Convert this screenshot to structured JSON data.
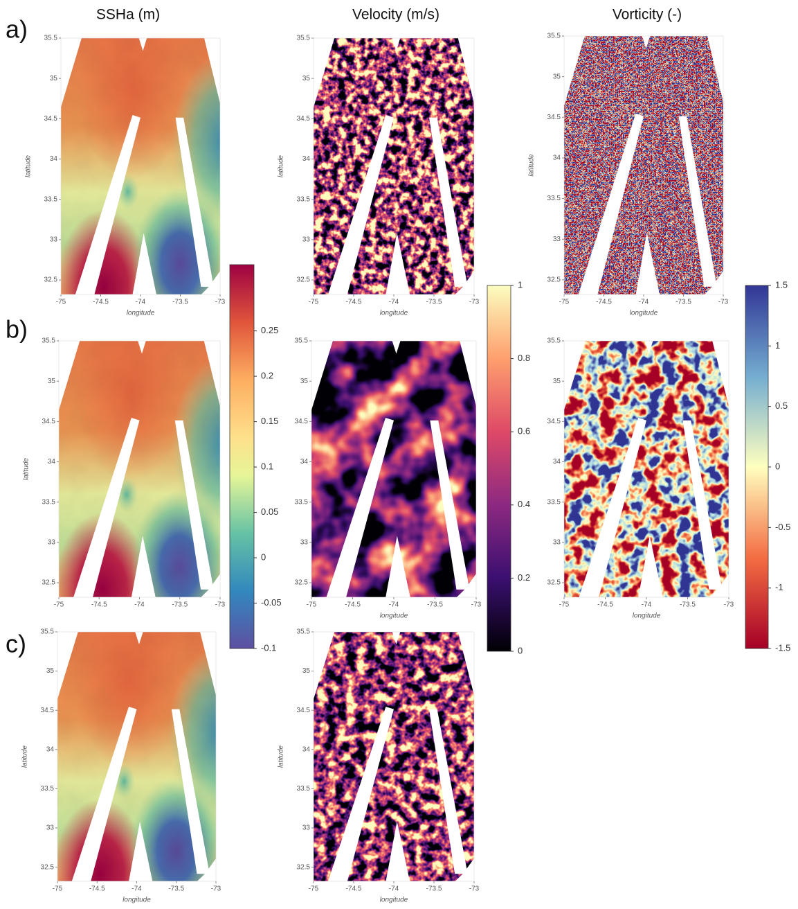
{
  "column_titles": [
    "SSHa (m)",
    "Velocity (m/s)",
    "Vorticity (-)"
  ],
  "rows": [
    {
      "label": "a)",
      "panels": [
        {
          "ylabel": "latitude",
          "xlabel": "longitude",
          "xlim": [
            -75,
            -73
          ],
          "ylim": [
            32.32,
            35.5
          ],
          "xticks": [
            -75,
            -74.5,
            -74,
            -73.5,
            -73
          ],
          "yticks": [
            32.5,
            33,
            33.5,
            34,
            34.5,
            35,
            35.5
          ]
        },
        {
          "ylabel": "latitude",
          "xlabel": "longitude",
          "xlim": [
            -75,
            -73
          ],
          "ylim": [
            32.32,
            35.5
          ],
          "xticks": [
            -75,
            -74.5,
            -74,
            -73.5,
            -73
          ],
          "yticks": [
            32.5,
            33,
            33.5,
            34,
            34.5,
            35,
            35.5
          ]
        },
        {
          "ylabel": "latitude",
          "xlabel": "longitude",
          "xlim": [
            -75,
            -73
          ],
          "ylim": [
            32.32,
            35.5
          ],
          "xticks": [
            -75,
            -74.5,
            -74,
            -73.5,
            -73
          ],
          "yticks": [
            32.5,
            33,
            33.5,
            34,
            34.5,
            35,
            35.5
          ]
        }
      ]
    },
    {
      "label": "b)",
      "panels": [
        {
          "ylabel": "latitude",
          "xlim": [
            -75,
            -73
          ],
          "ylim": [
            32.32,
            35.5
          ],
          "xticks": [
            -75,
            -74.5,
            -74,
            -73.5,
            -73
          ],
          "yticks": [
            32.5,
            33,
            33.5,
            34,
            34.5,
            35,
            35.5
          ]
        },
        {
          "xlabel": "longitude",
          "xlim": [
            -75,
            -73
          ],
          "ylim": [
            32.32,
            35.5
          ],
          "xticks": [
            -75,
            -74.5,
            -74,
            -73.5,
            -73
          ],
          "yticks": [
            32.5,
            33,
            33.5,
            34,
            34.5,
            35,
            35.5
          ]
        },
        {
          "xlabel": "longitude",
          "xlim": [
            -75,
            -73
          ],
          "ylim": [
            32.32,
            35.5
          ],
          "xticks": [
            -75,
            -74.5,
            -74,
            -73.5,
            -73
          ],
          "yticks": [
            32.5,
            33,
            33.5,
            34,
            34.5,
            35,
            35.5
          ]
        }
      ]
    },
    {
      "label": "c)",
      "panels": [
        {
          "ylabel": "latitude",
          "xlabel": "longitude",
          "xlim": [
            -75,
            -73
          ],
          "ylim": [
            32.32,
            35.5
          ],
          "xticks": [
            -75,
            -74.5,
            -74,
            -73.5,
            -73
          ],
          "yticks": [
            32.5,
            33,
            33.5,
            34,
            34.5,
            35,
            35.5
          ]
        },
        {
          "ylabel": "latitude",
          "xlabel": "longitude",
          "xlim": [
            -75,
            -73
          ],
          "ylim": [
            32.32,
            35.5
          ],
          "xticks": [
            -75,
            -74.5,
            -74,
            -73.5,
            -73
          ],
          "yticks": [
            32.5,
            33,
            33.5,
            34,
            34.5,
            35,
            35.5
          ]
        }
      ]
    }
  ],
  "colorbars": [
    {
      "lim": [
        -0.1,
        0.323
      ],
      "ticks": [
        -0.1,
        -0.05,
        0,
        0.05,
        0.1,
        0.15,
        0.2,
        0.25
      ]
    },
    {
      "lim": [
        0,
        1
      ],
      "ticks": [
        0,
        0.2,
        0.4,
        0.6,
        0.8,
        1
      ]
    },
    {
      "lim": [
        -1.5,
        1.5
      ],
      "ticks": [
        -1.5,
        -1,
        -0.5,
        0,
        0.5,
        1,
        1.5
      ]
    }
  ]
}
